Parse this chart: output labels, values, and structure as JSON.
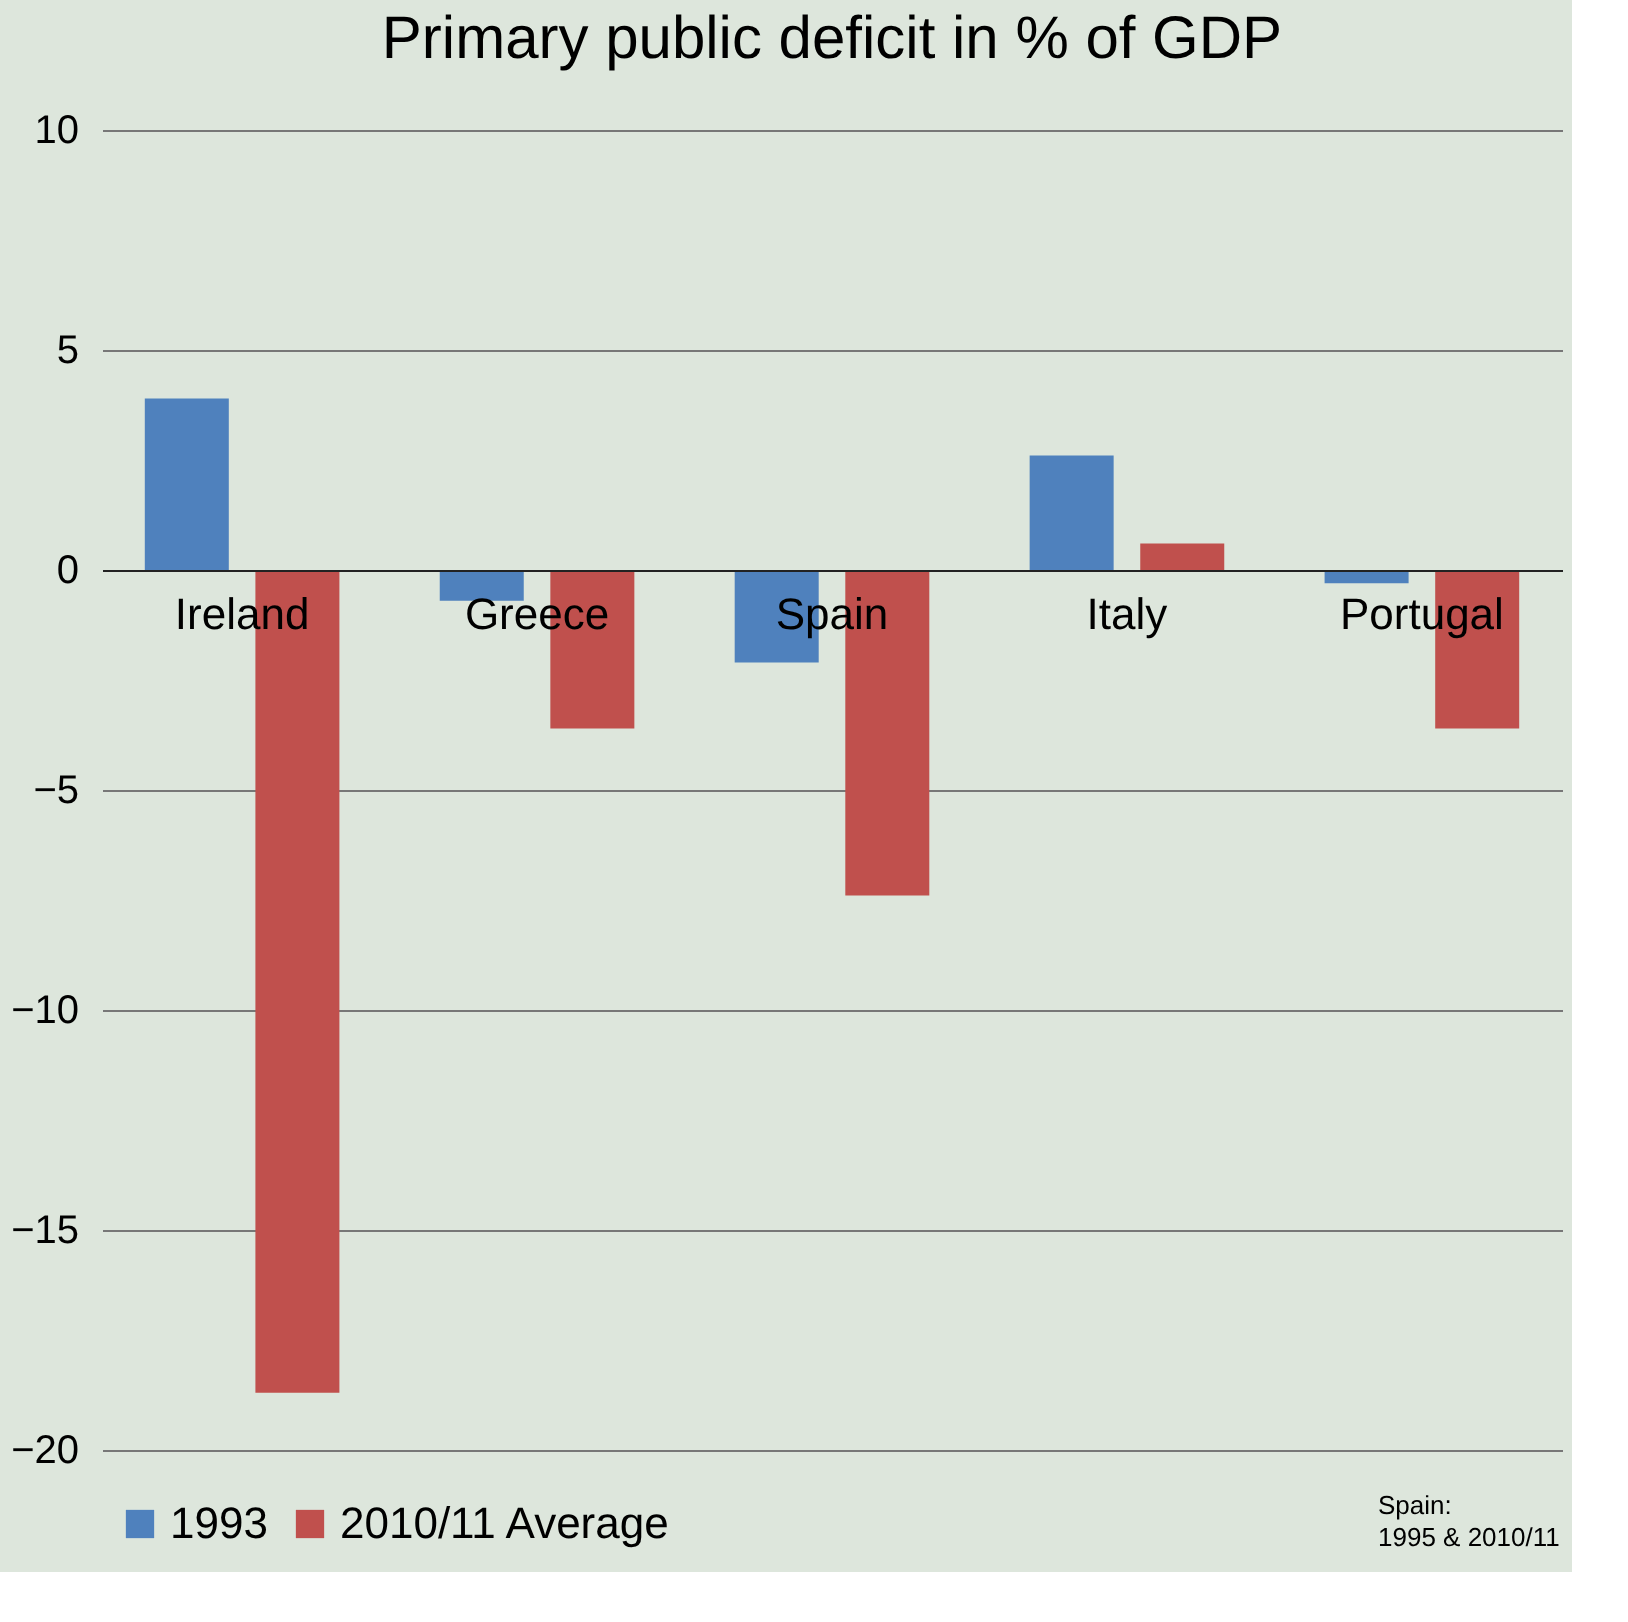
{
  "chart_data": {
    "type": "bar",
    "title": "Primary public deficit in % of GDP",
    "categories": [
      "Ireland",
      "Greece",
      "Spain",
      "Italy",
      "Portugal"
    ],
    "series": [
      {
        "name": "1993",
        "color": "#4f81bd",
        "values": [
          3.9,
          -0.7,
          -2.1,
          2.6,
          -0.3
        ]
      },
      {
        "name": "2010/11 Average",
        "color": "#c0504d",
        "values": [
          -18.7,
          -3.6,
          -7.4,
          0.6,
          -3.6
        ]
      }
    ],
    "ylim": [
      -20,
      10
    ],
    "yticks": [
      -20,
      -15,
      -10,
      -5,
      0,
      5,
      10
    ],
    "grid": "y",
    "legend": "bottom",
    "annotations": [
      "Spain:\n1995 & 2010/11"
    ]
  }
}
